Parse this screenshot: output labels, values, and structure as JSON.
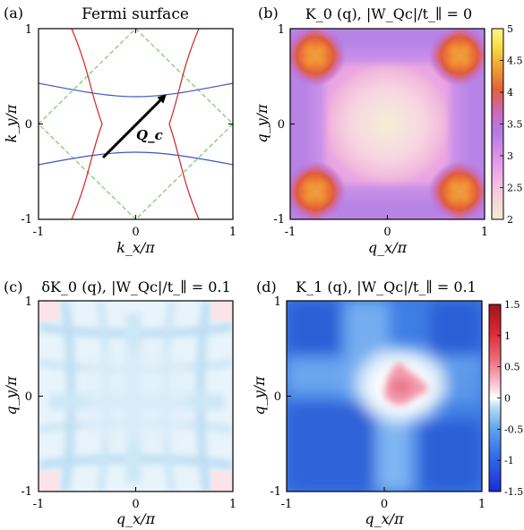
{
  "panels": [
    {
      "id": "a",
      "label": "(a)",
      "title": "Fermi surface",
      "xlabel": "k_x/π",
      "ylabel": "k_y/π",
      "xticks": [
        "-1",
        "0",
        "1"
      ],
      "yticks": [
        "1",
        "0",
        "-1"
      ],
      "vector_label": "Q_c",
      "colors": {
        "red_band": "#d0271f",
        "blue_band": "#3a57c4",
        "zone": "#5fbf4a",
        "arrow": "#000000"
      }
    },
    {
      "id": "b",
      "label": "(b)",
      "title": "K_0 (q),   |W_Qc|/t_∥ = 0",
      "xlabel": "q_x/π",
      "ylabel": "q_y/π",
      "xticks": [
        "-1",
        "0",
        "1"
      ],
      "yticks": [
        "1",
        "0",
        "-1"
      ],
      "colorbar": {
        "ticks": [
          "5",
          "4.5",
          "4",
          "3.5",
          "3",
          "2.5",
          "2"
        ],
        "min": 2,
        "max": 5,
        "colors": [
          "#f3ecd0",
          "#f6c8e0",
          "#e49ae8",
          "#b47be6",
          "#c76bc8",
          "#e2603e",
          "#f1a232",
          "#f8e44c",
          "#f6f58c"
        ]
      }
    },
    {
      "id": "c",
      "label": "(c)",
      "title": "δK_0 (q),   |W_Qc|/t_∥ = 0.1",
      "xlabel": "q_x/π",
      "ylabel": "q_y/π",
      "xticks": [
        "-1",
        "0",
        "1"
      ],
      "yticks": [
        "1",
        "0",
        "-1"
      ]
    },
    {
      "id": "d",
      "label": "(d)",
      "title": "K_1 (q),   |W_Qc|/t_∥ = 0.1",
      "xlabel": "q_x/π",
      "ylabel": "q_y/π",
      "xticks": [
        "-1",
        "0",
        "1"
      ],
      "yticks": [
        "1",
        "0",
        "-1"
      ],
      "colorbar": {
        "ticks": [
          "1.5",
          "1",
          "0.5",
          "0",
          "-0.5",
          "-1",
          "-1.5"
        ],
        "min": -1.5,
        "max": 1.5,
        "colors": [
          "#1a2bd6",
          "#2f66e6",
          "#5fa0ee",
          "#b6dcf5",
          "#ffffff",
          "#f8c0cc",
          "#ee6f7e",
          "#d92a35",
          "#a0141c"
        ]
      }
    }
  ]
}
